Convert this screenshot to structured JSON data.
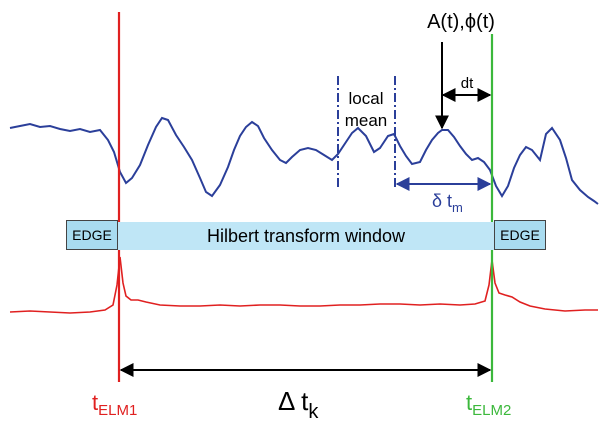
{
  "colors": {
    "signal_blue": "#2b3f9a",
    "signal_red": "#e02020",
    "elm1_line": "#e02020",
    "elm2_line": "#3cb83c",
    "window_fill": "#bfe6f6",
    "edge_fill": "#a9dcf0",
    "arrow_blue": "#2b3f9a",
    "arrow_black": "#000000"
  },
  "labels": {
    "amp_phase": "A(t),ϕ(t)",
    "dt": "dt",
    "local_mean_line1": "local",
    "local_mean_line2": "mean",
    "delta_tm_main": "δ t",
    "delta_tm_sub": "m",
    "edge_left": "EDGE",
    "edge_right": "EDGE",
    "window": "Hilbert transform window",
    "delta_tk_main": "Δ t",
    "delta_tk_sub": "k",
    "t_elm1_main": "t",
    "t_elm1_sub": "ELM1",
    "t_elm2_main": "t",
    "t_elm2_sub": "ELM2"
  }
}
